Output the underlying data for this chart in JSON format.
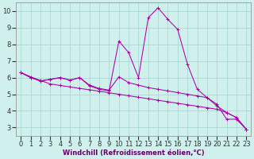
{
  "xlabel": "Windchill (Refroidissement éolien,°C)",
  "background_color": "#cff0ec",
  "grid_color": "#aad8d4",
  "line_color": "#aa00aa",
  "x": [
    0,
    1,
    2,
    3,
    4,
    5,
    6,
    7,
    8,
    9,
    10,
    11,
    12,
    13,
    14,
    15,
    16,
    17,
    18,
    19,
    20,
    21,
    22,
    23
  ],
  "series1": [
    6.3,
    6.0,
    5.8,
    5.9,
    6.0,
    5.85,
    6.0,
    5.5,
    5.3,
    5.2,
    8.2,
    7.5,
    6.0,
    9.6,
    10.2,
    9.5,
    8.9,
    6.8,
    5.3,
    4.8,
    4.4,
    3.5,
    3.5,
    2.9
  ],
  "series2": [
    6.3,
    6.0,
    5.8,
    5.9,
    6.0,
    5.85,
    6.0,
    5.55,
    5.35,
    5.25,
    6.05,
    5.7,
    5.55,
    5.4,
    5.3,
    5.2,
    5.1,
    5.0,
    4.9,
    4.8,
    4.3,
    3.9,
    3.6,
    2.9
  ],
  "series3": [
    6.3,
    6.05,
    5.83,
    5.62,
    5.53,
    5.44,
    5.35,
    5.27,
    5.18,
    5.09,
    5.0,
    4.91,
    4.82,
    4.73,
    4.64,
    4.55,
    4.46,
    4.37,
    4.28,
    4.19,
    4.1,
    3.9,
    3.6,
    2.9
  ],
  "ylim": [
    2.5,
    10.5
  ],
  "xlim": [
    -0.5,
    23.5
  ],
  "yticks": [
    3,
    4,
    5,
    6,
    7,
    8,
    9,
    10
  ],
  "xticks": [
    0,
    1,
    2,
    3,
    4,
    5,
    6,
    7,
    8,
    9,
    10,
    11,
    12,
    13,
    14,
    15,
    16,
    17,
    18,
    19,
    20,
    21,
    22,
    23
  ],
  "tick_fontsize": 6.0,
  "xlabel_fontsize": 6.0,
  "xlabel_color": "#660066",
  "tick_color": "#333333",
  "spine_color": "#888888",
  "line_width": 0.75,
  "marker_size": 2.5,
  "marker_ew": 0.7
}
